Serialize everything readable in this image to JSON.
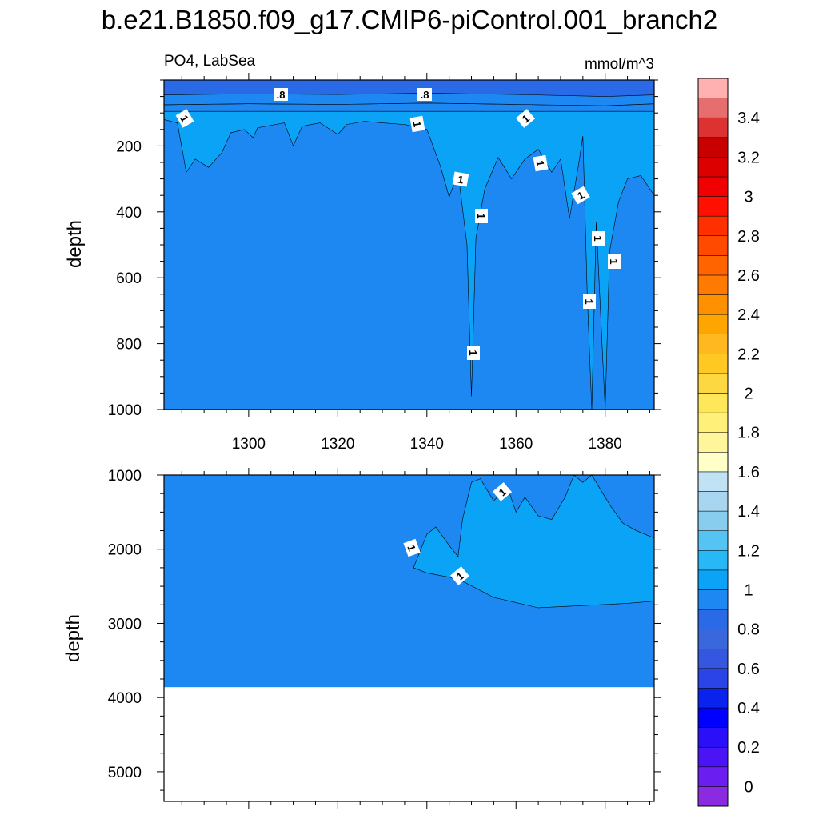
{
  "chart_data": {
    "type": "heatmap",
    "title": "b.e21.B1850.f09_g17.CMIP6-piControl.001_branch2",
    "left_subtitle": "PO4, LabSea",
    "right_subtitle": "mmol/m^3",
    "x": {
      "ticks": [
        1300,
        1320,
        1340,
        1360,
        1380
      ],
      "range": [
        1281,
        1391
      ]
    },
    "panels": [
      {
        "name": "upper",
        "ylabel": "depth",
        "ylim": [
          0,
          1000
        ],
        "yticks": [
          200,
          400,
          600,
          800,
          1000
        ],
        "contour_labels": [
          ".8",
          ".8",
          "1",
          "1",
          "1",
          "1",
          "1",
          "1",
          "1",
          "1",
          "1",
          "1",
          "1",
          "1"
        ],
        "layers": [
          {
            "level": "0.8-0.9",
            "color": "#2b6ae6",
            "boundary": [
              [
                1281,
                45
              ],
              [
                1300,
                42
              ],
              [
                1320,
                44
              ],
              [
                1340,
                40
              ],
              [
                1360,
                44
              ],
              [
                1380,
                50
              ],
              [
                1391,
                45
              ]
            ]
          },
          {
            "level": "0.9-1.0",
            "color": "#1e88f2",
            "boundary": [
              [
                1281,
                75
              ],
              [
                1300,
                72
              ],
              [
                1320,
                74
              ],
              [
                1340,
                70
              ],
              [
                1360,
                74
              ],
              [
                1380,
                78
              ],
              [
                1391,
                72
              ]
            ]
          },
          {
            "level": "1.0-1.1",
            "color": "#0aa3f5",
            "region": [
              [
                1281,
                120
              ],
              [
                1284,
                130
              ],
              [
                1286,
                280
              ],
              [
                1288,
                240
              ],
              [
                1291,
                265
              ],
              [
                1294,
                220
              ],
              [
                1296,
                160
              ],
              [
                1299,
                150
              ],
              [
                1301,
                175
              ],
              [
                1302,
                145
              ],
              [
                1308,
                130
              ],
              [
                1310,
                200
              ],
              [
                1312,
                140
              ],
              [
                1316,
                130
              ],
              [
                1320,
                165
              ],
              [
                1322,
                135
              ],
              [
                1326,
                125
              ],
              [
                1330,
                130
              ],
              [
                1335,
                135
              ],
              [
                1340,
                150
              ],
              [
                1343,
                260
              ],
              [
                1345,
                355
              ],
              [
                1347,
                280
              ],
              [
                1349,
                500
              ],
              [
                1350,
                960
              ],
              [
                1351,
                480
              ],
              [
                1353,
                330
              ],
              [
                1356,
                235
              ],
              [
                1359,
                300
              ],
              [
                1362,
                240
              ],
              [
                1365,
                210
              ],
              [
                1368,
                280
              ],
              [
                1370,
                240
              ],
              [
                1372,
                420
              ],
              [
                1374,
                260
              ],
              [
                1375,
                170
              ],
              [
                1376,
                660
              ],
              [
                1377,
                1000
              ],
              [
                1378,
                430
              ],
              [
                1380,
                1000
              ],
              [
                1381,
                520
              ],
              [
                1383,
                370
              ],
              [
                1385,
                300
              ],
              [
                1388,
                290
              ],
              [
                1391,
                350
              ],
              [
                1391,
                95
              ],
              [
                1281,
                95
              ]
            ]
          }
        ]
      },
      {
        "name": "lower",
        "ylabel": "depth",
        "ylim": [
          1000,
          5400
        ],
        "yticks": [
          1000,
          2000,
          3000,
          4000,
          5000
        ],
        "contour_labels": [
          "1",
          "1",
          "1"
        ],
        "layers": [
          {
            "level": "0.9-1.0",
            "color": "#1e88f2",
            "bottom_depth": 3860
          },
          {
            "level": "1.0-1.1",
            "color": "#0aa3f5",
            "region": [
              [
                1337,
                2250
              ],
              [
                1340,
                1800
              ],
              [
                1342,
                1700
              ],
              [
                1345,
                1950
              ],
              [
                1347,
                2100
              ],
              [
                1348,
                1600
              ],
              [
                1350,
                1100
              ],
              [
                1352,
                1050
              ],
              [
                1355,
                1350
              ],
              [
                1358,
                1150
              ],
              [
                1360,
                1500
              ],
              [
                1362,
                1300
              ],
              [
                1365,
                1550
              ],
              [
                1368,
                1600
              ],
              [
                1371,
                1300
              ],
              [
                1373,
                1000
              ],
              [
                1375,
                1100
              ],
              [
                1377,
                1000
              ],
              [
                1379,
                1200
              ],
              [
                1381,
                1400
              ],
              [
                1384,
                1650
              ],
              [
                1387,
                1750
              ],
              [
                1391,
                1850
              ],
              [
                1391,
                2700
              ],
              [
                1385,
                2730
              ],
              [
                1375,
                2760
              ],
              [
                1365,
                2790
              ],
              [
                1355,
                2650
              ],
              [
                1347,
                2400
              ],
              [
                1340,
                2320
              ]
            ]
          }
        ],
        "missing_below": 3860
      }
    ],
    "colorbar": {
      "labels": [
        "0",
        "0.2",
        "0.4",
        "0.6",
        "0.8",
        "1",
        "1.2",
        "1.4",
        "1.6",
        "1.8",
        "2",
        "2.2",
        "2.4",
        "2.6",
        "2.8",
        "3",
        "3.2",
        "3.4"
      ],
      "levels": [
        0,
        0.1,
        0.2,
        0.3,
        0.4,
        0.5,
        0.6,
        0.7,
        0.8,
        0.9,
        1.0,
        1.1,
        1.2,
        1.3,
        1.4,
        1.5,
        1.6,
        1.7,
        1.8,
        1.9,
        2.0,
        2.1,
        2.2,
        2.3,
        2.4,
        2.5,
        2.6,
        2.7,
        2.8,
        2.9,
        3.0,
        3.1,
        3.2,
        3.3,
        3.4,
        3.5,
        3.6
      ],
      "colors": [
        "#8a2be2",
        "#6a1ef0",
        "#4b14f5",
        "#2a0ff8",
        "#0000ff",
        "#0a22ee",
        "#2a44e8",
        "#3556de",
        "#3a68dc",
        "#2b6ae6",
        "#1e88f2",
        "#0aa3f5",
        "#28b8f5",
        "#56c4f2",
        "#88ccee",
        "#a8d6f0",
        "#c0e2f4",
        "#ffffc8",
        "#fff59a",
        "#fff07a",
        "#fee85a",
        "#fed840",
        "#ffc822",
        "#ffb820",
        "#ffa500",
        "#ff9000",
        "#ff7a00",
        "#ff6400",
        "#ff4a00",
        "#ff3000",
        "#ff1000",
        "#f00000",
        "#dc0000",
        "#c80000",
        "#dc3232",
        "#e66e6e",
        "#ffb0b0"
      ]
    }
  }
}
